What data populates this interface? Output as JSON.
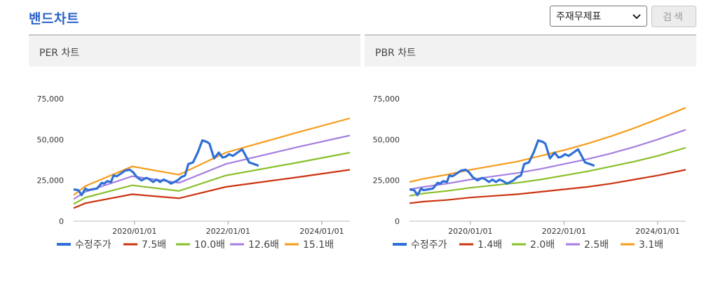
{
  "page": {
    "title": "밴드차트"
  },
  "controls": {
    "select_value": "주재무제표",
    "search_label": "검색"
  },
  "colors": {
    "price": "#2f6fd6",
    "band1": "#cc3311",
    "band2": "#88c02a",
    "band3": "#a57fe0",
    "band4": "#f59c1a"
  },
  "chart_data": [
    {
      "type": "line",
      "title": "PER 차트",
      "yticks": [
        "75,000",
        "50,000",
        "25,000",
        "0"
      ],
      "ytick_values": [
        75000,
        50000,
        25000,
        0
      ],
      "xticks": [
        "2020/01/01",
        "2022/01/01",
        "2024/01/01"
      ],
      "xtick_values": [
        2020.0,
        2022.0,
        2024.0
      ],
      "xlim": [
        2018.7,
        2024.6
      ],
      "ylim": [
        0,
        75000
      ],
      "price": {
        "name": "수정주가",
        "x": [
          2018.7,
          2018.8,
          2018.87,
          2018.95,
          2019.0,
          2019.1,
          2019.2,
          2019.3,
          2019.35,
          2019.42,
          2019.5,
          2019.55,
          2019.62,
          2019.7,
          2019.8,
          2019.9,
          2019.97,
          2020.05,
          2020.15,
          2020.25,
          2020.3,
          2020.4,
          2020.47,
          2020.55,
          2020.62,
          2020.7,
          2020.78,
          2020.85,
          2020.92,
          2021.0,
          2021.08,
          2021.15,
          2021.25,
          2021.35,
          2021.45,
          2021.55,
          2021.6,
          2021.7,
          2021.8,
          2021.88,
          2021.95,
          2022.02,
          2022.1,
          2022.2,
          2022.3,
          2022.45,
          2022.55,
          2022.65
        ],
        "values": [
          19500,
          19000,
          16000,
          20000,
          19000,
          19500,
          20000,
          23500,
          23000,
          24500,
          24000,
          28000,
          27500,
          29000,
          31000,
          31500,
          30000,
          27000,
          25000,
          26500,
          26000,
          24000,
          25500,
          24000,
          25500,
          24500,
          23000,
          24000,
          25000,
          27000,
          28000,
          35000,
          36000,
          42000,
          49500,
          48500,
          47500,
          38500,
          42000,
          39000,
          39500,
          41000,
          40000,
          42000,
          44000,
          36000,
          35000,
          34000
        ]
      },
      "series": [
        {
          "name": "7.5배",
          "x": [
            2018.7,
            2018.95,
            2019.95,
            2020.95,
            2021.95,
            2023.5,
            2024.6
          ],
          "values": [
            8000,
            11000,
            16500,
            14000,
            21000,
            27000,
            31500
          ]
        },
        {
          "name": "10.0배",
          "x": [
            2018.7,
            2018.95,
            2019.95,
            2020.95,
            2021.95,
            2023.5,
            2024.6
          ],
          "values": [
            10500,
            14500,
            22000,
            18500,
            28000,
            36000,
            42000
          ]
        },
        {
          "name": "12.6배",
          "x": [
            2018.7,
            2018.95,
            2019.95,
            2020.95,
            2021.95,
            2023.5,
            2024.6
          ],
          "values": [
            13500,
            18000,
            27500,
            23500,
            35000,
            45500,
            52500
          ]
        },
        {
          "name": "15.1배",
          "x": [
            2018.7,
            2018.95,
            2019.95,
            2020.95,
            2021.95,
            2023.5,
            2024.6
          ],
          "values": [
            16000,
            21500,
            33500,
            28500,
            42000,
            54500,
            63000
          ]
        }
      ]
    },
    {
      "type": "line",
      "title": "PBR 차트",
      "yticks": [
        "75,000",
        "50,000",
        "25,000",
        "0"
      ],
      "ytick_values": [
        75000,
        50000,
        25000,
        0
      ],
      "xticks": [
        "2020/01/01",
        "2022/01/01",
        "2024/01/01"
      ],
      "xtick_values": [
        2020.0,
        2022.0,
        2024.0
      ],
      "xlim": [
        2018.7,
        2024.6
      ],
      "ylim": [
        0,
        75000
      ],
      "price": {
        "name": "수정주가",
        "x": [
          2018.7,
          2018.8,
          2018.87,
          2018.95,
          2019.0,
          2019.1,
          2019.2,
          2019.3,
          2019.35,
          2019.42,
          2019.5,
          2019.55,
          2019.62,
          2019.7,
          2019.8,
          2019.9,
          2019.97,
          2020.05,
          2020.15,
          2020.25,
          2020.3,
          2020.4,
          2020.47,
          2020.55,
          2020.62,
          2020.7,
          2020.78,
          2020.85,
          2020.92,
          2021.0,
          2021.08,
          2021.15,
          2021.25,
          2021.35,
          2021.45,
          2021.55,
          2021.6,
          2021.7,
          2021.8,
          2021.88,
          2021.95,
          2022.02,
          2022.1,
          2022.2,
          2022.3,
          2022.45,
          2022.55,
          2022.65
        ],
        "values": [
          19500,
          19000,
          16000,
          20000,
          19000,
          19500,
          20000,
          23500,
          23000,
          24500,
          24000,
          28000,
          27500,
          29000,
          31000,
          31500,
          30000,
          27000,
          25000,
          26500,
          26000,
          24000,
          25500,
          24000,
          25500,
          24500,
          23000,
          24000,
          25000,
          27000,
          28000,
          35000,
          36000,
          42000,
          49500,
          48500,
          47500,
          38500,
          42000,
          39000,
          39500,
          41000,
          40000,
          42000,
          44000,
          36000,
          35000,
          34000
        ]
      },
      "series": [
        {
          "name": "1.4배",
          "x": [
            2018.7,
            2019.0,
            2019.5,
            2020.0,
            2020.5,
            2021.0,
            2021.5,
            2022.0,
            2022.5,
            2023.0,
            2023.5,
            2024.0,
            2024.6
          ],
          "values": [
            11000,
            12000,
            13000,
            14500,
            15500,
            16500,
            18000,
            19500,
            21000,
            23000,
            25500,
            28000,
            31500
          ]
        },
        {
          "name": "2.0배",
          "x": [
            2018.7,
            2019.0,
            2019.5,
            2020.0,
            2020.5,
            2021.0,
            2021.5,
            2022.0,
            2022.5,
            2023.0,
            2023.5,
            2024.0,
            2024.6
          ],
          "values": [
            15500,
            17000,
            18500,
            20500,
            22000,
            23500,
            25500,
            28000,
            30500,
            33500,
            36500,
            40000,
            45000
          ]
        },
        {
          "name": "2.5배",
          "x": [
            2018.7,
            2019.0,
            2019.5,
            2020.0,
            2020.5,
            2021.0,
            2021.5,
            2022.0,
            2022.5,
            2023.0,
            2023.5,
            2024.0,
            2024.6
          ],
          "values": [
            19500,
            21000,
            23000,
            25500,
            27500,
            29500,
            32000,
            35000,
            38000,
            41500,
            45500,
            50000,
            56000
          ]
        },
        {
          "name": "3.1배",
          "x": [
            2018.7,
            2019.0,
            2019.5,
            2020.0,
            2020.5,
            2021.0,
            2021.5,
            2022.0,
            2022.5,
            2023.0,
            2023.5,
            2024.0,
            2024.6
          ],
          "values": [
            24000,
            26000,
            28500,
            31500,
            34000,
            36500,
            40000,
            43500,
            47500,
            52000,
            57000,
            62500,
            69500
          ]
        }
      ]
    }
  ]
}
